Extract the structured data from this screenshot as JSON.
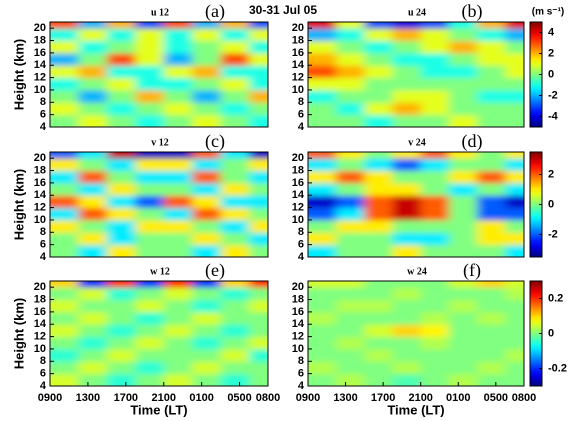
{
  "figure_title": "30-31 Jul 05",
  "chart_data": [
    {
      "type": "heatmap",
      "title": "u 12",
      "panel_label": "(a)",
      "ylabel": "Height (km)",
      "xlim": [
        9,
        32
      ],
      "ylim": [
        4,
        21
      ],
      "yticks": [
        4,
        6,
        8,
        10,
        12,
        14,
        16,
        18,
        20
      ],
      "xbins": [
        9,
        12,
        15,
        18,
        21,
        24,
        27,
        30,
        32
      ],
      "ybins": [
        4,
        6,
        8,
        10,
        12,
        14,
        16,
        18,
        20,
        21
      ],
      "zlim": [
        -5,
        5
      ],
      "z": [
        [
          0,
          1,
          0,
          -1,
          0,
          1,
          0,
          -1
        ],
        [
          1,
          0,
          -1,
          0,
          1,
          0,
          -1,
          0
        ],
        [
          0,
          -2,
          0,
          2,
          0,
          -2,
          0,
          2
        ],
        [
          -1,
          0,
          1,
          -1,
          -1,
          0,
          1,
          -1
        ],
        [
          1,
          2,
          -1,
          -1,
          1,
          2,
          -1,
          -1
        ],
        [
          -2,
          0,
          3,
          1,
          -2,
          0,
          3,
          1
        ],
        [
          1,
          -1,
          0,
          1,
          -1,
          0,
          1,
          -1
        ],
        [
          -1,
          1,
          -1,
          1,
          -1,
          1,
          -1,
          1
        ],
        [
          3,
          -2,
          2,
          -3,
          3,
          -2,
          2,
          -3
        ]
      ]
    },
    {
      "type": "heatmap",
      "title": "u 24",
      "panel_label": "(b)",
      "xlim": [
        9,
        32
      ],
      "ylim": [
        4,
        21
      ],
      "yticks": [
        4,
        6,
        8,
        10,
        12,
        14,
        16,
        18,
        20
      ],
      "xbins": [
        9,
        12,
        15,
        18,
        21,
        24,
        27,
        30,
        32
      ],
      "ybins": [
        4,
        6,
        8,
        10,
        12,
        14,
        16,
        18,
        20,
        21
      ],
      "zlim": [
        -5,
        5
      ],
      "colorbar_ticks": [
        -4,
        -2,
        0,
        2,
        4
      ],
      "colorbar_label": "(m s⁻¹)",
      "z": [
        [
          0,
          0,
          -1,
          0,
          0,
          1,
          0,
          0
        ],
        [
          0,
          -1,
          1,
          2,
          1,
          0,
          0,
          0
        ],
        [
          -1,
          0,
          0,
          1,
          1,
          0,
          -1,
          -1
        ],
        [
          1,
          1,
          0,
          0,
          0,
          0,
          0,
          0
        ],
        [
          3,
          2,
          1,
          0,
          -1,
          -1,
          0,
          1
        ],
        [
          2,
          1,
          0,
          -1,
          -1,
          0,
          1,
          1
        ],
        [
          1,
          0,
          -1,
          0,
          1,
          2,
          1,
          0
        ],
        [
          -2,
          -1,
          1,
          2,
          1,
          0,
          -1,
          -2
        ],
        [
          4,
          1,
          -3,
          -4,
          -3,
          -1,
          2,
          4
        ]
      ]
    },
    {
      "type": "heatmap",
      "title": "v 12",
      "panel_label": "(c)",
      "ylabel": "Height (km)",
      "xlim": [
        9,
        32
      ],
      "ylim": [
        4,
        21
      ],
      "yticks": [
        4,
        6,
        8,
        10,
        12,
        14,
        16,
        18,
        20
      ],
      "xbins": [
        9,
        12,
        15,
        18,
        21,
        24,
        27,
        30,
        32
      ],
      "ybins": [
        4,
        6,
        8,
        10,
        12,
        14,
        16,
        18,
        20,
        21
      ],
      "zlim": [
        -3.5,
        3.5
      ],
      "z": [
        [
          0,
          -1,
          1,
          0,
          0,
          -1,
          1,
          0
        ],
        [
          0,
          1,
          -1,
          0,
          0,
          1,
          0,
          -1
        ],
        [
          1,
          0,
          -1,
          1,
          1,
          0,
          -1,
          1
        ],
        [
          -1,
          2,
          1,
          0,
          -1,
          2,
          1,
          0
        ],
        [
          2,
          1,
          -1,
          -2,
          2,
          1,
          -1,
          -1
        ],
        [
          0,
          -1,
          1,
          0,
          0,
          -1,
          1,
          0
        ],
        [
          -1,
          2,
          0,
          -1,
          -1,
          2,
          0,
          -1
        ],
        [
          1,
          0,
          -1,
          1,
          1,
          -1,
          0,
          1
        ],
        [
          -2,
          -1,
          3,
          -3,
          -3,
          2,
          -1,
          -3
        ]
      ]
    },
    {
      "type": "heatmap",
      "title": "v 24",
      "panel_label": "(d)",
      "xlim": [
        9,
        32
      ],
      "ylim": [
        4,
        21
      ],
      "yticks": [
        4,
        6,
        8,
        10,
        12,
        14,
        16,
        18,
        20
      ],
      "xbins": [
        9,
        12,
        15,
        18,
        21,
        24,
        27,
        30,
        32
      ],
      "ybins": [
        4,
        6,
        8,
        10,
        12,
        14,
        16,
        18,
        20,
        21
      ],
      "zlim": [
        -3.5,
        3.5
      ],
      "colorbar_ticks": [
        -2,
        0,
        2
      ],
      "z": [
        [
          -1,
          0,
          0,
          1,
          0,
          0,
          0,
          -1
        ],
        [
          1,
          0,
          0,
          -1,
          -1,
          0,
          1,
          1
        ],
        [
          0,
          1,
          1,
          0,
          0,
          0,
          1,
          0
        ],
        [
          -2,
          -1,
          2,
          3,
          2,
          0,
          -2,
          -2
        ],
        [
          -3,
          -2,
          2,
          3,
          2,
          0,
          -2,
          -3
        ],
        [
          -1,
          0,
          1,
          1,
          0,
          -1,
          0,
          -1
        ],
        [
          1,
          2,
          1,
          0,
          0,
          1,
          2,
          1
        ],
        [
          -1,
          0,
          -1,
          -2,
          -1,
          0,
          0,
          -1
        ],
        [
          2,
          1,
          0,
          1,
          2,
          1,
          0,
          1
        ]
      ]
    },
    {
      "type": "heatmap",
      "title": "w 12",
      "panel_label": "(e)",
      "ylabel": "Height (km)",
      "xlabel": "Time (LT)",
      "xlim": [
        9,
        32
      ],
      "ylim": [
        4,
        21
      ],
      "yticks": [
        4,
        6,
        8,
        10,
        12,
        14,
        16,
        18,
        20
      ],
      "xticks": [
        {
          "value": 9,
          "label": "0900"
        },
        {
          "value": 13,
          "label": "1300"
        },
        {
          "value": 17,
          "label": "1700"
        },
        {
          "value": 21,
          "label": "2100"
        },
        {
          "value": 25,
          "label": "0100"
        },
        {
          "value": 29,
          "label": "0500"
        },
        {
          "value": 32,
          "label": "0800"
        }
      ],
      "xbins": [
        9,
        12,
        15,
        18,
        21,
        24,
        27,
        30,
        32
      ],
      "ybins": [
        4,
        6,
        8,
        10,
        12,
        14,
        16,
        18,
        20,
        21
      ],
      "zlim": [
        -0.3,
        0.3
      ],
      "z": [
        [
          0.05,
          0,
          -0.05,
          0,
          0.05,
          0,
          -0.05,
          0
        ],
        [
          0,
          0.05,
          0,
          -0.05,
          0,
          0.05,
          0,
          0
        ],
        [
          -0.05,
          0,
          0.05,
          0,
          0,
          0,
          0.05,
          -0.05
        ],
        [
          0,
          -0.05,
          0,
          0.05,
          0,
          -0.05,
          0,
          0.05
        ],
        [
          0.05,
          0,
          -0.05,
          0,
          0.05,
          0,
          -0.05,
          0
        ],
        [
          0,
          0.05,
          0,
          -0.05,
          0,
          0.05,
          0,
          0
        ],
        [
          0.05,
          0,
          0,
          0.05,
          0,
          -0.05,
          0,
          0.05
        ],
        [
          0,
          0.05,
          -0.05,
          0,
          0.05,
          0,
          -0.05,
          0
        ],
        [
          0.1,
          -0.2,
          0.2,
          -0.2,
          0.2,
          -0.2,
          0.1,
          0.2
        ]
      ]
    },
    {
      "type": "heatmap",
      "title": "w 24",
      "panel_label": "(f)",
      "xlabel": "Time (LT)",
      "xlim": [
        9,
        32
      ],
      "ylim": [
        4,
        21
      ],
      "yticks": [
        4,
        6,
        8,
        10,
        12,
        14,
        16,
        18,
        20
      ],
      "xticks": [
        {
          "value": 9,
          "label": "0900"
        },
        {
          "value": 13,
          "label": "1300"
        },
        {
          "value": 17,
          "label": "1700"
        },
        {
          "value": 21,
          "label": "2100"
        },
        {
          "value": 25,
          "label": "0100"
        },
        {
          "value": 29,
          "label": "0500"
        },
        {
          "value": 32,
          "label": "0800"
        }
      ],
      "xbins": [
        9,
        12,
        15,
        18,
        21,
        24,
        27,
        30,
        32
      ],
      "ybins": [
        4,
        6,
        8,
        10,
        12,
        14,
        16,
        18,
        20,
        21
      ],
      "zlim": [
        -0.3,
        0.3
      ],
      "colorbar_ticks": [
        -0.2,
        0,
        0.2
      ],
      "z": [
        [
          0,
          0.03,
          0,
          -0.03,
          0,
          0.03,
          0,
          0
        ],
        [
          0.03,
          0,
          0,
          0.03,
          0,
          0,
          0.03,
          0
        ],
        [
          0,
          0,
          0.03,
          0,
          0,
          0,
          0,
          0.03
        ],
        [
          0,
          0.03,
          0,
          0,
          0.03,
          0,
          0,
          0
        ],
        [
          0,
          0,
          0.05,
          0.1,
          0.08,
          0,
          0,
          0
        ],
        [
          0.03,
          0,
          0,
          0,
          0.03,
          0,
          0.03,
          0
        ],
        [
          0,
          0.03,
          0.03,
          0,
          0,
          0.03,
          0,
          0
        ],
        [
          0,
          0,
          0,
          0.03,
          0,
          0,
          0,
          0.03
        ],
        [
          0.05,
          0.05,
          0,
          0,
          0,
          0.05,
          0.1,
          0.05
        ]
      ]
    }
  ]
}
